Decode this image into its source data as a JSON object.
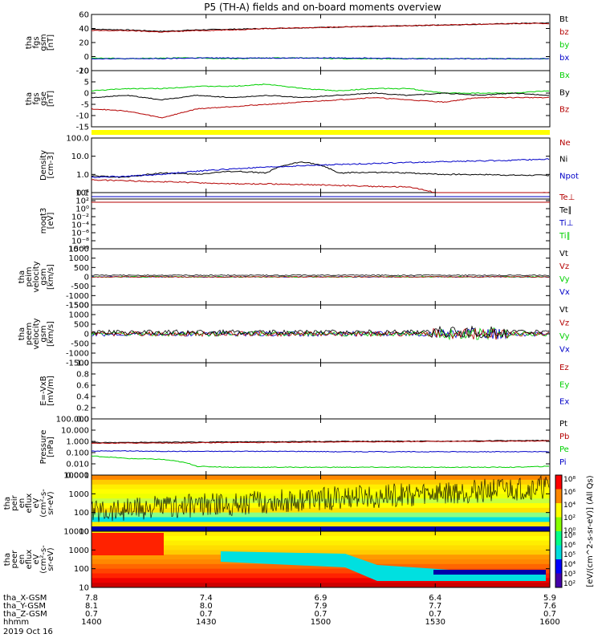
{
  "title": "P5 (TH-A) fields and on-board moments overview",
  "colors": {
    "black": "#000000",
    "red": "#b40000",
    "green": "#00d000",
    "blue": "#0000c8",
    "yellow": "#ffff00"
  },
  "panels": [
    {
      "id": "fgs-gsm",
      "ylabel": [
        "tha",
        "fgs",
        "gsm",
        "[nT]"
      ],
      "yticks": [
        "60",
        "40",
        "20",
        "0",
        "-20"
      ],
      "legend": [
        {
          "text": "Bt",
          "color": "black"
        },
        {
          "text": "bz",
          "color": "red"
        },
        {
          "text": "by",
          "color": "green"
        },
        {
          "text": "bx",
          "color": "blue"
        }
      ]
    },
    {
      "id": "fgs-gse",
      "ylabel": [
        "tha",
        "fgs",
        "gse",
        "[nT]"
      ],
      "yticks": [
        "10",
        "5",
        "0",
        "-5",
        "-10",
        "-15"
      ],
      "legend": [
        {
          "text": "Bx",
          "color": "green"
        },
        {
          "text": "By",
          "color": "black"
        },
        {
          "text": "Bz",
          "color": "red"
        }
      ]
    },
    {
      "id": "density",
      "ylabel": [
        "Density",
        "[cm-3]"
      ],
      "yticks": [
        "100.0",
        "10.0",
        "1.0",
        "0.1"
      ],
      "legend": [
        {
          "text": "Ne",
          "color": "red"
        },
        {
          "text": "Ni",
          "color": "black"
        },
        {
          "text": "Npot",
          "color": "blue"
        }
      ]
    },
    {
      "id": "temperature",
      "ylabel": [
        "moqt3",
        "[eV]"
      ],
      "yticks": [
        "10⁴",
        "10²",
        "10⁰",
        "10⁻²",
        "10⁻⁴",
        "10⁻⁶",
        "10⁻⁸",
        "10⁻¹⁰"
      ],
      "legend": [
        {
          "text": "Te⊥",
          "color": "red"
        },
        {
          "text": "Te∥",
          "color": "black"
        },
        {
          "text": "Ti⊥",
          "color": "blue"
        },
        {
          "text": "Ti∥",
          "color": "green"
        }
      ]
    },
    {
      "id": "peim-velocity",
      "ylabel": [
        "tha",
        "peim",
        "velocity",
        "gsm",
        "[km/s]"
      ],
      "yticks": [
        "1500",
        "1000",
        "500",
        "0",
        "-500",
        "-1000",
        "-1500"
      ],
      "legend": [
        {
          "text": "Vt",
          "color": "black"
        },
        {
          "text": "Vz",
          "color": "red"
        },
        {
          "text": "Vy",
          "color": "green"
        },
        {
          "text": "Vx",
          "color": "blue"
        }
      ]
    },
    {
      "id": "peem-velocity",
      "ylabel": [
        "tha",
        "peem",
        "velocity",
        "gsm",
        "[km/s]"
      ],
      "yticks": [
        "1500",
        "1000",
        "500",
        "0",
        "-500",
        "-1000",
        "-1500"
      ],
      "legend": [
        {
          "text": "Vt",
          "color": "black"
        },
        {
          "text": "Vz",
          "color": "red"
        },
        {
          "text": "Vy",
          "color": "green"
        },
        {
          "text": "Vx",
          "color": "blue"
        }
      ]
    },
    {
      "id": "efield",
      "ylabel": [
        "E=-VxB",
        "[mV/m]"
      ],
      "yticks": [
        "1.0",
        "0.8",
        "0.6",
        "0.4",
        "0.2",
        "0.0"
      ],
      "legend": [
        {
          "text": "Ez",
          "color": "red"
        },
        {
          "text": "Ey",
          "color": "green"
        },
        {
          "text": "Ex",
          "color": "blue"
        }
      ]
    },
    {
      "id": "pressure",
      "ylabel": [
        "Pressure",
        "[nPa]"
      ],
      "yticks": [
        "100.000",
        "10.000",
        "1.000",
        "0.100",
        "0.010",
        "0.001"
      ],
      "legend": [
        {
          "text": "Pt",
          "color": "black"
        },
        {
          "text": "Pb",
          "color": "red"
        },
        {
          "text": "Pe",
          "color": "green"
        },
        {
          "text": "Pi",
          "color": "blue"
        }
      ]
    },
    {
      "id": "peir-spectrogram",
      "ylabel": [
        "tha",
        "peir",
        "en",
        "eflux",
        "eV",
        "(cm²-s-",
        "sr-eV)"
      ],
      "yticks": [
        "10000",
        "1000",
        "100",
        "10"
      ]
    },
    {
      "id": "peer-spectrogram",
      "ylabel": [
        "tha",
        "peer",
        "en",
        "eflux",
        "eV",
        "(cm²-s-",
        "sr-eV)"
      ],
      "yticks": [
        "10000",
        "1000",
        "100",
        "10"
      ]
    }
  ],
  "colorbar": {
    "label": "[eV/(cm^2-s-sr-eV)] (All Qs)",
    "ticks_top": [
      "10⁸",
      "10⁶",
      "10⁴",
      "10²",
      "10⁰"
    ],
    "ticks_bottom": [
      "10⁸",
      "10⁶",
      "10⁵",
      "10⁴",
      "10³",
      "10²"
    ]
  },
  "xaxis": {
    "rows": [
      {
        "label": "tha_X-GSM",
        "values": [
          "7.8",
          "7.4",
          "6.9",
          "6.4",
          "5.9"
        ]
      },
      {
        "label": "tha_Y-GSM",
        "values": [
          "8.1",
          "8.0",
          "7.9",
          "7.7",
          "7.6"
        ]
      },
      {
        "label": "tha_Z-GSM",
        "values": [
          "0.7",
          "0.7",
          "0.7",
          "0.7",
          "0.7"
        ]
      },
      {
        "label": "hhmm",
        "values": [
          "1400",
          "1430",
          "1500",
          "1530",
          "1600"
        ]
      }
    ],
    "date": "2019 Oct 16"
  },
  "chart_data": {
    "type": "line",
    "time_range": [
      "1400",
      "1600"
    ],
    "series": [
      {
        "panel": "fgs-gsm",
        "name": "Bt",
        "values": [
          39,
          38,
          36,
          38,
          39,
          40,
          41,
          42,
          43,
          44,
          45,
          46,
          47,
          48
        ]
      },
      {
        "panel": "fgs-gsm",
        "name": "bz",
        "values": [
          37,
          37,
          35,
          37,
          38,
          40,
          41,
          42,
          43,
          44,
          45,
          46,
          47,
          47
        ]
      },
      {
        "panel": "fgs-gsm",
        "name": "by",
        "values": [
          -2,
          -3,
          -2,
          -2,
          -3,
          -2,
          -2,
          -3,
          -3,
          -3,
          -3,
          -3,
          -3,
          -3
        ]
      },
      {
        "panel": "fgs-gsm",
        "name": "bx",
        "values": [
          -3,
          -3,
          -3,
          -2,
          -2,
          -2,
          -2,
          -2,
          -2,
          -3,
          -3,
          -3,
          -3,
          -3
        ]
      },
      {
        "panel": "fgs-gse",
        "name": "Bx",
        "values": [
          1,
          2,
          2,
          3,
          3,
          4,
          2,
          1,
          2,
          2,
          0,
          0,
          0,
          1
        ]
      },
      {
        "panel": "fgs-gse",
        "name": "By",
        "values": [
          -2,
          -1,
          -3,
          -1,
          -2,
          -1,
          -2,
          -1,
          0,
          -1,
          0,
          -1,
          0,
          -1
        ]
      },
      {
        "panel": "fgs-gse",
        "name": "Bz",
        "values": [
          -7,
          -8,
          -11,
          -7,
          -6,
          -5,
          -4,
          -3,
          -2,
          -3,
          -4,
          -2,
          -2,
          -2
        ]
      },
      {
        "panel": "density",
        "name": "Ni",
        "values": [
          0.8,
          0.7,
          1.2,
          1.0,
          1.5,
          1.2,
          5,
          1.2,
          1.3,
          1.2,
          1.0,
          1.0,
          0.9,
          0.9
        ]
      },
      {
        "panel": "density",
        "name": "Ne",
        "values": [
          0.5,
          0.45,
          0.4,
          0.35,
          0.3,
          0.3,
          0.28,
          0.25,
          0.22,
          0.2,
          0.07,
          0.06,
          0.08,
          0.1
        ]
      },
      {
        "panel": "density",
        "name": "Npot",
        "values": [
          0.7,
          0.8,
          1.0,
          1.5,
          2,
          2.5,
          3,
          3.5,
          4,
          4.5,
          5,
          5.5,
          6,
          7
        ]
      },
      {
        "panel": "pressure",
        "name": "Pt",
        "values": [
          0.8,
          0.8,
          0.85,
          0.85,
          0.9,
          0.9,
          0.95,
          1.0,
          1.0,
          1.05,
          1.05,
          1.1,
          1.15,
          1.2
        ]
      },
      {
        "panel": "pressure",
        "name": "Pb",
        "values": [
          0.7,
          0.7,
          0.7,
          0.75,
          0.8,
          0.8,
          0.85,
          0.9,
          0.9,
          0.95,
          1.0,
          1.0,
          1.05,
          1.1
        ]
      },
      {
        "panel": "pressure",
        "name": "Pi",
        "values": [
          0.14,
          0.14,
          0.13,
          0.13,
          0.13,
          0.13,
          0.13,
          0.12,
          0.12,
          0.12,
          0.12,
          0.12,
          0.12,
          0.12
        ]
      },
      {
        "panel": "pressure",
        "name": "Pe",
        "values": [
          0.05,
          0.03,
          0.025,
          0.006,
          0.005,
          0.005,
          0.005,
          0.005,
          0.005,
          0.005,
          0.005,
          0.005,
          0.005,
          0.006
        ]
      }
    ]
  }
}
